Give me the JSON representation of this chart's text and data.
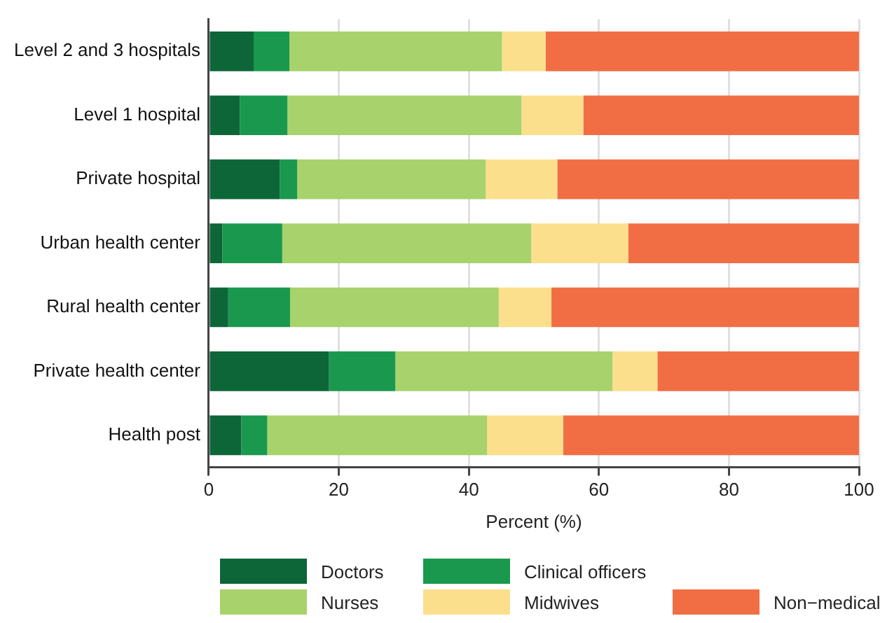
{
  "chart_data": {
    "type": "bar",
    "orientation": "horizontal",
    "stacked": true,
    "xlabel": "Percent (%)",
    "categories": [
      "Level 2 and 3 hospitals",
      "Level 1 hospital",
      "Private hospital",
      "Urban health center",
      "Rural health center",
      "Private health center",
      "Health post"
    ],
    "series": [
      {
        "name": "Doctors",
        "color": "#0d6638",
        "values": [
          6.9,
          4.8,
          10.9,
          2.1,
          3.0,
          18.5,
          5.0
        ]
      },
      {
        "name": "Clinical officers",
        "color": "#1a994e",
        "values": [
          5.5,
          7.3,
          2.7,
          9.2,
          9.5,
          10.2,
          4.0
        ]
      },
      {
        "name": "Nurses",
        "color": "#a8d26c",
        "values": [
          32.7,
          36.0,
          29.0,
          38.3,
          32.1,
          33.4,
          33.8
        ]
      },
      {
        "name": "Midwives",
        "color": "#fbdf8c",
        "values": [
          6.7,
          9.5,
          11.0,
          14.9,
          8.1,
          6.9,
          11.7
        ]
      },
      {
        "name": "Non−medical",
        "color": "#f16e45",
        "values": [
          48.2,
          42.4,
          46.4,
          35.5,
          47.3,
          31.0,
          45.5
        ]
      }
    ],
    "xlim": [
      0,
      100
    ],
    "xticks": [
      0,
      20,
      40,
      60,
      80,
      100
    ],
    "grid": "x",
    "legend": "bottom"
  }
}
